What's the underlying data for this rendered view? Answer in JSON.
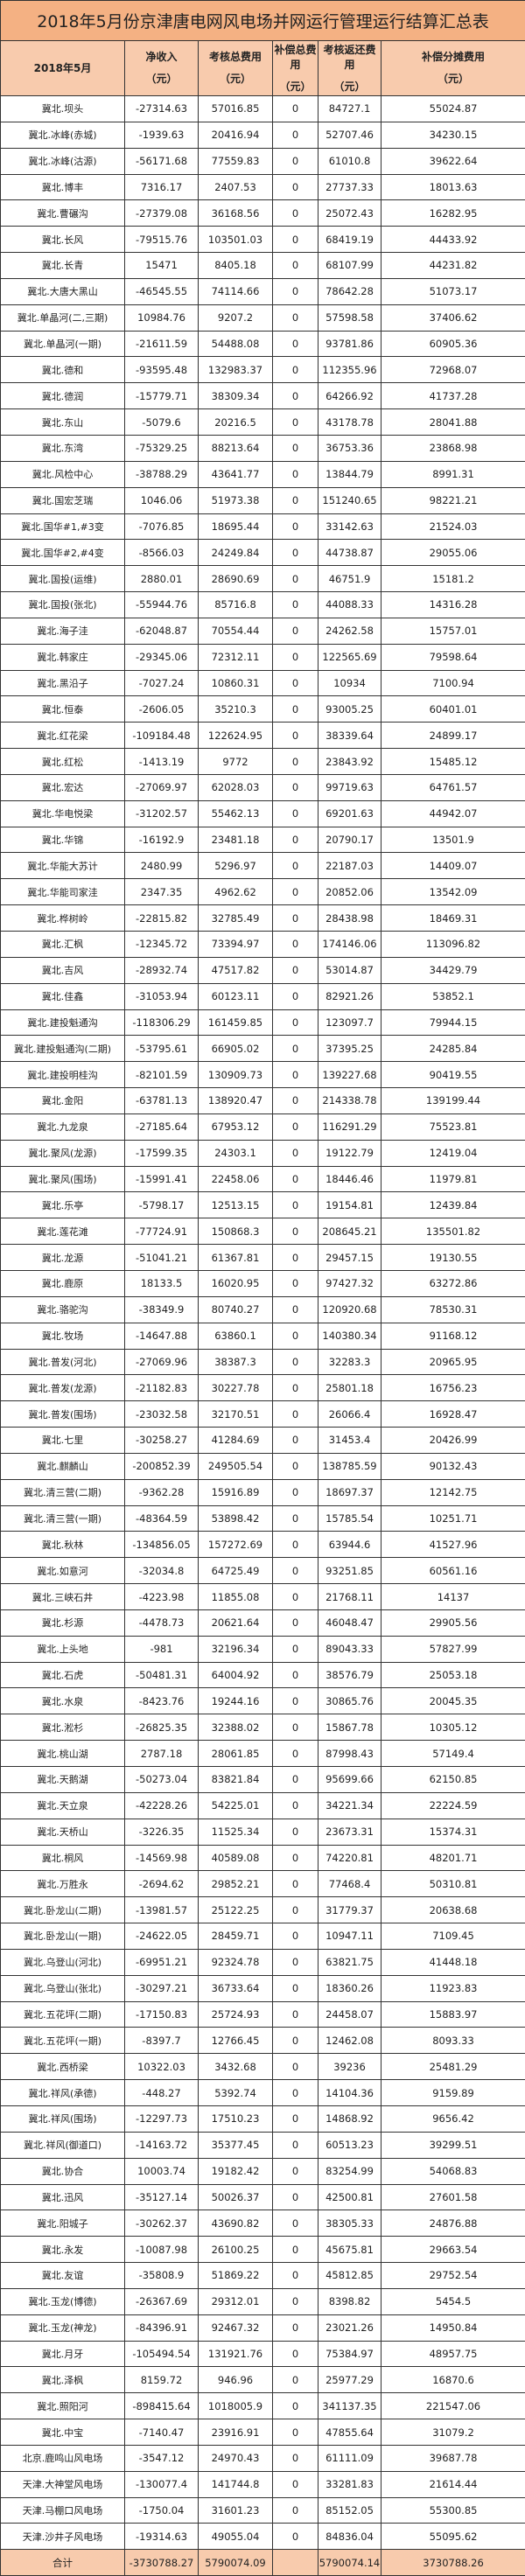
{
  "title": "2018年5月份京津唐电网风电场并网运行管理运行结算汇总表",
  "colors": {
    "title_bg": "#f4b183",
    "header_bg": "#f8cbad",
    "total_bg": "#f8cbad"
  },
  "headers": [
    {
      "label": "2018年5月",
      "unit": ""
    },
    {
      "label": "净收入",
      "unit": "（元）"
    },
    {
      "label": "考核总费用",
      "unit": "（元）"
    },
    {
      "label": "补偿总费用",
      "unit": "（元）"
    },
    {
      "label": "考核返还费用",
      "unit": "（元）"
    },
    {
      "label": "补偿分摊费用",
      "unit": "（元）"
    }
  ],
  "rows": [
    [
      "冀北.坝头",
      "-27314.63",
      "57016.85",
      "0",
      "84727.1",
      "55024.87"
    ],
    [
      "冀北.冰峰(赤城)",
      "-1939.63",
      "20416.94",
      "0",
      "52707.46",
      "34230.15"
    ],
    [
      "冀北.冰峰(沽源)",
      "-56171.68",
      "77559.83",
      "0",
      "61010.8",
      "39622.64"
    ],
    [
      "冀北.博丰",
      "7316.17",
      "2407.53",
      "0",
      "27737.33",
      "18013.63"
    ],
    [
      "冀北.曹碾沟",
      "-27379.08",
      "36168.56",
      "0",
      "25072.43",
      "16282.95"
    ],
    [
      "冀北.长风",
      "-79515.76",
      "103501.03",
      "0",
      "68419.19",
      "44433.92"
    ],
    [
      "冀北.长青",
      "15471",
      "8405.18",
      "0",
      "68107.99",
      "44231.82"
    ],
    [
      "冀北.大唐大黑山",
      "-46545.55",
      "74114.66",
      "0",
      "78642.28",
      "51073.17"
    ],
    [
      "冀北.单晶河(二,三期)",
      "10984.76",
      "9207.2",
      "0",
      "57598.58",
      "37406.62"
    ],
    [
      "冀北.单晶河(一期)",
      "-21611.59",
      "54488.08",
      "0",
      "93781.86",
      "60905.36"
    ],
    [
      "冀北.德和",
      "-93595.48",
      "132983.37",
      "0",
      "112355.96",
      "72968.07"
    ],
    [
      "冀北.德润",
      "-15779.71",
      "38309.34",
      "0",
      "64266.92",
      "41737.28"
    ],
    [
      "冀北.东山",
      "-5079.6",
      "20216.5",
      "0",
      "43178.78",
      "28041.88"
    ],
    [
      "冀北.东湾",
      "-75329.25",
      "88213.64",
      "0",
      "36753.36",
      "23868.98"
    ],
    [
      "冀北.风检中心",
      "-38788.29",
      "43641.77",
      "0",
      "13844.79",
      "8991.31"
    ],
    [
      "冀北.国宏芝瑞",
      "1046.06",
      "51973.38",
      "0",
      "151240.65",
      "98221.21"
    ],
    [
      "冀北.国华#1,#3变",
      "-7076.85",
      "18695.44",
      "0",
      "33142.63",
      "21524.03"
    ],
    [
      "冀北.国华#2,#4变",
      "-8566.03",
      "24249.84",
      "0",
      "44738.87",
      "29055.06"
    ],
    [
      "冀北.国投(运维)",
      "2880.01",
      "28690.69",
      "0",
      "46751.9",
      "15181.2"
    ],
    [
      "冀北.国投(张北)",
      "-55944.76",
      "85716.8",
      "0",
      "44088.33",
      "14316.28"
    ],
    [
      "冀北.海子洼",
      "-62048.87",
      "70554.44",
      "0",
      "24262.58",
      "15757.01"
    ],
    [
      "冀北.韩家庄",
      "-29345.06",
      "72312.11",
      "0",
      "122565.69",
      "79598.64"
    ],
    [
      "冀北.黑沿子",
      "-7027.24",
      "10860.31",
      "0",
      "10934",
      "7100.94"
    ],
    [
      "冀北.恒泰",
      "-2606.05",
      "35210.3",
      "0",
      "93005.25",
      "60401.01"
    ],
    [
      "冀北.红花梁",
      "-109184.48",
      "122624.95",
      "0",
      "38339.64",
      "24899.17"
    ],
    [
      "冀北.红松",
      "-1413.19",
      "9772",
      "0",
      "23843.92",
      "15485.12"
    ],
    [
      "冀北.宏达",
      "-27069.97",
      "62028.03",
      "0",
      "99719.63",
      "64761.57"
    ],
    [
      "冀北.华电悦梁",
      "-31202.57",
      "55462.13",
      "0",
      "69201.63",
      "44942.07"
    ],
    [
      "冀北.华锦",
      "-16192.9",
      "23481.18",
      "0",
      "20790.17",
      "13501.9"
    ],
    [
      "冀北.华能大苏计",
      "2480.99",
      "5296.97",
      "0",
      "22187.03",
      "14409.07"
    ],
    [
      "冀北.华能司家洼",
      "2347.35",
      "4962.62",
      "0",
      "20852.06",
      "13542.09"
    ],
    [
      "冀北.桦树岭",
      "-22815.82",
      "32785.49",
      "0",
      "28438.98",
      "18469.31"
    ],
    [
      "冀北.汇枫",
      "-12345.72",
      "73394.97",
      "0",
      "174146.06",
      "113096.82"
    ],
    [
      "冀北.吉风",
      "-28932.74",
      "47517.82",
      "0",
      "53014.87",
      "34429.79"
    ],
    [
      "冀北.佳鑫",
      "-31053.94",
      "60123.11",
      "0",
      "82921.26",
      "53852.1"
    ],
    [
      "冀北.建投魁通沟",
      "-118306.29",
      "161459.85",
      "0",
      "123097.7",
      "79944.15"
    ],
    [
      "冀北.建投魁通沟(二期)",
      "-53795.61",
      "66905.02",
      "0",
      "37395.25",
      "24285.84"
    ],
    [
      "冀北.建投明桂沟",
      "-82101.59",
      "130909.73",
      "0",
      "139227.68",
      "90419.55"
    ],
    [
      "冀北.金阳",
      "-63781.13",
      "138920.47",
      "0",
      "214338.78",
      "139199.44"
    ],
    [
      "冀北.九龙泉",
      "-27185.64",
      "67953.12",
      "0",
      "116291.29",
      "75523.81"
    ],
    [
      "冀北.聚风(龙源)",
      "-17599.35",
      "24303.1",
      "0",
      "19122.79",
      "12419.04"
    ],
    [
      "冀北.聚风(围场)",
      "-15991.41",
      "22458.06",
      "0",
      "18446.46",
      "11979.81"
    ],
    [
      "冀北.乐亭",
      "-5798.17",
      "12513.15",
      "0",
      "19154.81",
      "12439.84"
    ],
    [
      "冀北.莲花滩",
      "-77724.91",
      "150868.3",
      "0",
      "208645.21",
      "135501.82"
    ],
    [
      "冀北.龙源",
      "-51041.21",
      "61367.81",
      "0",
      "29457.15",
      "19130.55"
    ],
    [
      "冀北.鹿原",
      "18133.5",
      "16020.95",
      "0",
      "97427.32",
      "63272.86"
    ],
    [
      "冀北.骆驼沟",
      "-38349.9",
      "80740.27",
      "0",
      "120920.68",
      "78530.31"
    ],
    [
      "冀北.牧场",
      "-14647.88",
      "63860.1",
      "0",
      "140380.34",
      "91168.12"
    ],
    [
      "冀北.普发(河北)",
      "-27069.96",
      "38387.3",
      "0",
      "32283.3",
      "20965.95"
    ],
    [
      "冀北.普发(龙源)",
      "-21182.83",
      "30227.78",
      "0",
      "25801.18",
      "16756.23"
    ],
    [
      "冀北.普发(围场)",
      "-23032.58",
      "32170.51",
      "0",
      "26066.4",
      "16928.47"
    ],
    [
      "冀北.七里",
      "-30258.27",
      "41284.69",
      "0",
      "31453.4",
      "20426.99"
    ],
    [
      "冀北.麒麟山",
      "-200852.39",
      "249505.54",
      "0",
      "138785.59",
      "90132.43"
    ],
    [
      "冀北.清三营(二期)",
      "-9362.28",
      "15916.89",
      "0",
      "18697.37",
      "12142.75"
    ],
    [
      "冀北.清三营(一期)",
      "-48364.59",
      "53898.42",
      "0",
      "15785.54",
      "10251.71"
    ],
    [
      "冀北.秋林",
      "-134856.05",
      "157272.69",
      "0",
      "63944.6",
      "41527.96"
    ],
    [
      "冀北.如意河",
      "-32034.8",
      "64725.49",
      "0",
      "93251.85",
      "60561.16"
    ],
    [
      "冀北.三峡石井",
      "-4223.98",
      "11855.08",
      "0",
      "21768.11",
      "14137"
    ],
    [
      "冀北.杉源",
      "-4478.73",
      "20621.64",
      "0",
      "46048.47",
      "29905.56"
    ],
    [
      "冀北.上头地",
      "-981",
      "32196.34",
      "0",
      "89043.33",
      "57827.99"
    ],
    [
      "冀北.石虎",
      "-50481.31",
      "64004.92",
      "0",
      "38576.79",
      "25053.18"
    ],
    [
      "冀北.水泉",
      "-8423.76",
      "19244.16",
      "0",
      "30865.76",
      "20045.35"
    ],
    [
      "冀北.淞杉",
      "-26825.35",
      "32388.02",
      "0",
      "15867.78",
      "10305.12"
    ],
    [
      "冀北.桃山湖",
      "2787.18",
      "28061.85",
      "0",
      "87998.43",
      "57149.4"
    ],
    [
      "冀北.天鹅湖",
      "-50273.04",
      "83821.84",
      "0",
      "95699.66",
      "62150.85"
    ],
    [
      "冀北.天立泉",
      "-42228.26",
      "54225.01",
      "0",
      "34221.34",
      "22224.59"
    ],
    [
      "冀北.天桥山",
      "-3226.35",
      "11525.34",
      "0",
      "23673.31",
      "15374.31"
    ],
    [
      "冀北.桐风",
      "-14569.98",
      "40589.08",
      "0",
      "74220.81",
      "48201.71"
    ],
    [
      "冀北.万胜永",
      "-2694.62",
      "29852.21",
      "0",
      "77468.4",
      "50310.81"
    ],
    [
      "冀北.卧龙山(二期)",
      "-13981.57",
      "25122.25",
      "0",
      "31779.37",
      "20638.68"
    ],
    [
      "冀北.卧龙山(一期)",
      "-24622.05",
      "28459.71",
      "0",
      "10947.11",
      "7109.45"
    ],
    [
      "冀北.乌登山(河北)",
      "-69951.21",
      "92324.78",
      "0",
      "63821.75",
      "41448.18"
    ],
    [
      "冀北.乌登山(张北)",
      "-30297.21",
      "36733.64",
      "0",
      "18360.26",
      "11923.83"
    ],
    [
      "冀北.五花坪(二期)",
      "-17150.83",
      "25724.93",
      "0",
      "24458.07",
      "15883.97"
    ],
    [
      "冀北.五花坪(一期)",
      "-8397.7",
      "12766.45",
      "0",
      "12462.08",
      "8093.33"
    ],
    [
      "冀北.西桥梁",
      "10322.03",
      "3432.68",
      "0",
      "39236",
      "25481.29"
    ],
    [
      "冀北.祥风(承德)",
      "-448.27",
      "5392.74",
      "0",
      "14104.36",
      "9159.89"
    ],
    [
      "冀北.祥风(围场)",
      "-12297.73",
      "17510.23",
      "0",
      "14868.92",
      "9656.42"
    ],
    [
      "冀北.祥风(御道口)",
      "-14163.72",
      "35377.45",
      "0",
      "60513.23",
      "39299.51"
    ],
    [
      "冀北.协合",
      "10003.74",
      "19182.42",
      "0",
      "83254.99",
      "54068.83"
    ],
    [
      "冀北.迅风",
      "-35127.14",
      "50026.37",
      "0",
      "42500.81",
      "27601.58"
    ],
    [
      "冀北.阳城子",
      "-30262.37",
      "43690.82",
      "0",
      "38305.33",
      "24876.88"
    ],
    [
      "冀北.永发",
      "-10087.98",
      "26100.25",
      "0",
      "45675.81",
      "29663.54"
    ],
    [
      "冀北.友谊",
      "-35808.9",
      "51869.22",
      "0",
      "45812.85",
      "29752.54"
    ],
    [
      "冀北.玉龙(博德)",
      "-26367.69",
      "29312.01",
      "0",
      "8398.82",
      "5454.5"
    ],
    [
      "冀北.玉龙(神龙)",
      "-84396.91",
      "92467.32",
      "0",
      "23021.26",
      "14950.84"
    ],
    [
      "冀北.月牙",
      "-105494.54",
      "131921.76",
      "0",
      "75384.97",
      "48957.75"
    ],
    [
      "冀北.泽枫",
      "8159.72",
      "946.96",
      "0",
      "25977.29",
      "16870.6"
    ],
    [
      "冀北.照阳河",
      "-898415.64",
      "1018005.9",
      "0",
      "341137.35",
      "221547.06"
    ],
    [
      "冀北.中宝",
      "-7140.47",
      "23916.91",
      "0",
      "47855.64",
      "31079.2"
    ],
    [
      "北京.鹿鸣山风电场",
      "-3547.12",
      "24970.43",
      "0",
      "61111.09",
      "39687.78"
    ],
    [
      "天津.大神堂风电场",
      "-130077.4",
      "141744.8",
      "0",
      "33281.83",
      "21614.44"
    ],
    [
      "天津.马棚口风电场",
      "-1750.04",
      "31601.23",
      "0",
      "85152.05",
      "55300.85"
    ],
    [
      "天津.沙井子风电场",
      "-19314.63",
      "49055.04",
      "0",
      "84836.04",
      "55095.62"
    ]
  ],
  "total": [
    "合计",
    "-3730788.27",
    "5790074.09",
    "",
    "5790074.14",
    "3730788.26"
  ]
}
